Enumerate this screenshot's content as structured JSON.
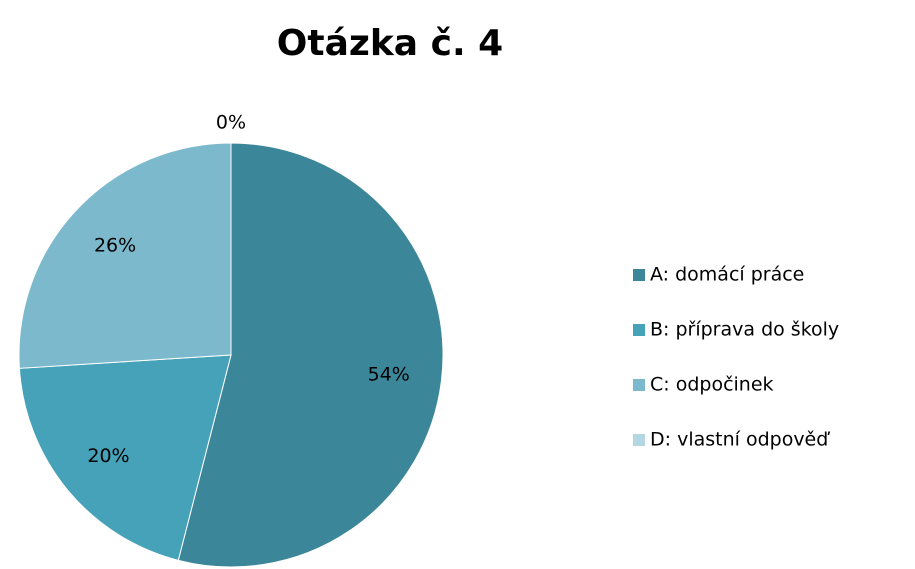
{
  "chart_data": {
    "type": "pie",
    "title": "Otázka č. 4",
    "categories": [
      "A: domácí práce",
      "B: příprava do školy",
      "C: odpočinek",
      "D: vlastní odpověď"
    ],
    "values": [
      54,
      20,
      26,
      0
    ],
    "value_labels": [
      "54%",
      "20%",
      "26%",
      "0%"
    ],
    "colors": [
      "#3b8698",
      "#46a2b8",
      "#7cb9cc",
      "#b3d6e2"
    ],
    "legend": "right"
  }
}
